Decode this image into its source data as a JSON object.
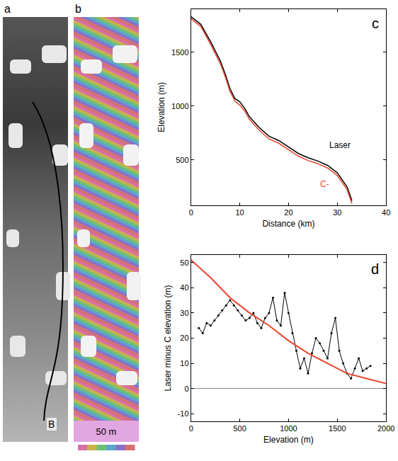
{
  "figure": {
    "panels": [
      {
        "label": "a",
        "track_label": "B"
      },
      {
        "label": "b",
        "scale_label": "50 m"
      }
    ]
  },
  "chart_data": [
    {
      "type": "line",
      "title": "c",
      "x_label": "Distance (km)",
      "y_label": "Elevation (m)",
      "x": [
        0,
        2,
        4,
        6,
        7,
        8,
        9,
        10,
        11,
        12,
        14,
        16,
        18,
        20,
        22,
        24,
        26,
        28,
        30,
        32,
        33
      ],
      "series": [
        {
          "name": "Laser",
          "color": "#000000",
          "values": [
            1830,
            1760,
            1600,
            1420,
            1300,
            1160,
            1070,
            1040,
            980,
            900,
            800,
            720,
            680,
            620,
            560,
            520,
            490,
            450,
            380,
            250,
            120
          ]
        },
        {
          "name": "C-",
          "color": "#e8452c",
          "values": [
            1810,
            1740,
            1575,
            1395,
            1275,
            1135,
            1045,
            1010,
            955,
            875,
            775,
            695,
            655,
            595,
            535,
            495,
            465,
            425,
            355,
            225,
            95
          ]
        }
      ],
      "xlim": [
        0,
        40
      ],
      "xticks": [
        0,
        10,
        20,
        30,
        40
      ],
      "ylim": [
        80,
        1900
      ],
      "yticks": [
        500,
        1000,
        1500
      ],
      "grid": false
    },
    {
      "type": "scatter",
      "title": "d",
      "x_label": "Elevation (m)",
      "y_label": "Laser minus C elevation (m)",
      "series": [
        {
          "type": "scatter",
          "color": "#000000",
          "x": [
            80,
            120,
            160,
            200,
            240,
            280,
            320,
            360,
            400,
            440,
            480,
            520,
            560,
            600,
            640,
            680,
            720,
            760,
            800,
            840,
            880,
            920,
            960,
            1000,
            1040,
            1080,
            1120,
            1160,
            1200,
            1240,
            1280,
            1320,
            1360,
            1400,
            1440,
            1480,
            1520,
            1560,
            1600,
            1640,
            1680,
            1720,
            1760,
            1800,
            1840
          ],
          "values": [
            24,
            22,
            26,
            25,
            27,
            29,
            31,
            33,
            35,
            33,
            31,
            29,
            27,
            28,
            30,
            26,
            24,
            28,
            30,
            36,
            27,
            25,
            38,
            30,
            22,
            15,
            8,
            12,
            6,
            14,
            20,
            18,
            15,
            12,
            22,
            28,
            15,
            10,
            6,
            4,
            8,
            12,
            7,
            8,
            9
          ]
        },
        {
          "type": "line",
          "color": "#e8452c",
          "x": [
            0,
            200,
            400,
            600,
            800,
            1000,
            1200,
            1400,
            1600,
            1800,
            2000
          ],
          "values": [
            51,
            44,
            36,
            30,
            25,
            19,
            14,
            10,
            6,
            4,
            2
          ]
        }
      ],
      "xlim": [
        0,
        2000
      ],
      "xticks": [
        0,
        500,
        1000,
        1500,
        2000
      ],
      "ylim": [
        -13,
        53
      ],
      "yticks": [
        -10,
        0,
        10,
        20,
        30,
        40,
        50
      ],
      "grid": false
    }
  ]
}
